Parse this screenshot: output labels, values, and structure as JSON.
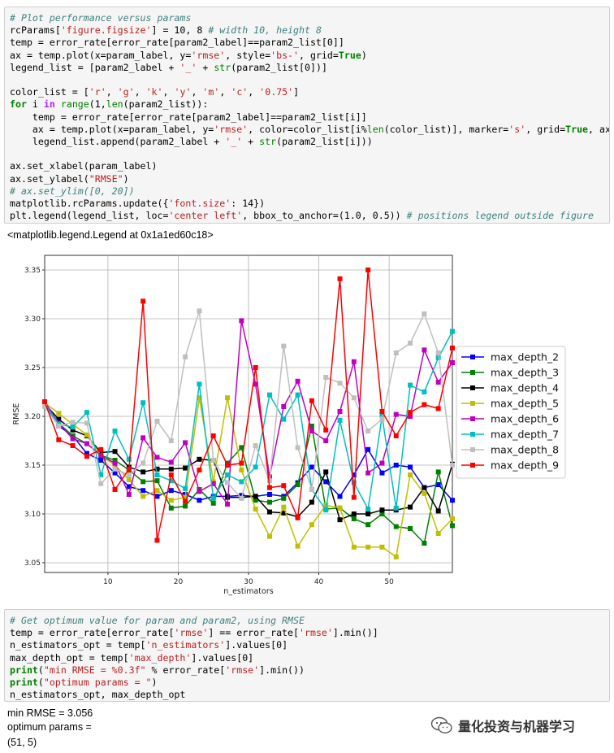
{
  "cell1": {
    "lines": [
      [
        [
          "cm",
          "# Plot performance versus params"
        ]
      ],
      [
        [
          "",
          "rcParams["
        ],
        [
          "st",
          "'figure.figsize'"
        ],
        [
          "",
          "] = 10, 8 "
        ],
        [
          "cm",
          "# width 10, height 8"
        ]
      ],
      [
        [
          "",
          "temp = error_rate[error_rate[param2_label]==param2_list[0]]"
        ]
      ],
      [
        [
          "",
          "ax = temp.plot(x=param_label, y="
        ],
        [
          "st",
          "'rmse'"
        ],
        [
          "",
          ", style="
        ],
        [
          "st",
          "'bs-'"
        ],
        [
          "",
          ", grid="
        ],
        [
          "kw",
          "True"
        ],
        [
          "",
          ")"
        ]
      ],
      [
        [
          "",
          "legend_list = [param2_label + "
        ],
        [
          "st",
          "'_'"
        ],
        [
          "",
          " + "
        ],
        [
          "bi",
          "str"
        ],
        [
          "",
          "(param2_list[0])]"
        ]
      ],
      [
        [
          "",
          ""
        ]
      ],
      [
        [
          "",
          "color_list = ["
        ],
        [
          "st",
          "'r'"
        ],
        [
          "",
          ", "
        ],
        [
          "st",
          "'g'"
        ],
        [
          "",
          ", "
        ],
        [
          "st",
          "'k'"
        ],
        [
          "",
          ", "
        ],
        [
          "st",
          "'y'"
        ],
        [
          "",
          ", "
        ],
        [
          "st",
          "'m'"
        ],
        [
          "",
          ", "
        ],
        [
          "st",
          "'c'"
        ],
        [
          "",
          ", "
        ],
        [
          "st",
          "'0.75'"
        ],
        [
          "",
          "]"
        ]
      ],
      [
        [
          "kw",
          "for"
        ],
        [
          "",
          " i "
        ],
        [
          "op",
          "in"
        ],
        [
          "",
          " "
        ],
        [
          "bi",
          "range"
        ],
        [
          "",
          "(1,"
        ],
        [
          "bi",
          "len"
        ],
        [
          "",
          "(param2_list)):"
        ]
      ],
      [
        [
          "",
          "    temp = error_rate[error_rate[param2_label]==param2_list[i]]"
        ]
      ],
      [
        [
          "",
          "    ax = temp.plot(x=param_label, y="
        ],
        [
          "st",
          "'rmse'"
        ],
        [
          "",
          ", color=color_list[i%"
        ],
        [
          "bi",
          "len"
        ],
        [
          "",
          "(color_list)], marker="
        ],
        [
          "st",
          "'s'"
        ],
        [
          "",
          ", grid="
        ],
        [
          "kw",
          "True"
        ],
        [
          "",
          ", ax=ax)"
        ]
      ],
      [
        [
          "",
          "    legend_list.append(param2_label + "
        ],
        [
          "st",
          "'_'"
        ],
        [
          "",
          " + "
        ],
        [
          "bi",
          "str"
        ],
        [
          "",
          "(param2_list[i]))"
        ]
      ],
      [
        [
          "",
          ""
        ]
      ],
      [
        [
          "",
          "ax.set_xlabel(param_label)"
        ]
      ],
      [
        [
          "",
          "ax.set_ylabel("
        ],
        [
          "st",
          "\"RMSE\""
        ],
        [
          "",
          ")"
        ]
      ],
      [
        [
          "cm",
          "# ax.set_ylim([0, 20])"
        ]
      ],
      [
        [
          "",
          "matplotlib.rcParams.update({"
        ],
        [
          "st",
          "'font.size'"
        ],
        [
          "",
          ": 14})"
        ]
      ],
      [
        [
          "",
          "plt.legend(legend_list, loc="
        ],
        [
          "st",
          "'center left'"
        ],
        [
          "",
          ", bbox_to_anchor=(1.0, 0.5)) "
        ],
        [
          "cm",
          "# positions legend outside figure"
        ]
      ]
    ]
  },
  "output1": "<matplotlib.legend.Legend at 0x1a1ed60c18>",
  "cell2": {
    "lines": [
      [
        [
          "cm",
          "# Get optimum value for param and param2, using RMSE"
        ]
      ],
      [
        [
          "",
          "temp = error_rate[error_rate["
        ],
        [
          "st",
          "'rmse'"
        ],
        [
          "",
          "] == error_rate["
        ],
        [
          "st",
          "'rmse'"
        ],
        [
          "",
          "].min()]"
        ]
      ],
      [
        [
          "",
          "n_estimators_opt = temp["
        ],
        [
          "st",
          "'n_estimators'"
        ],
        [
          "",
          "].values[0]"
        ]
      ],
      [
        [
          "",
          "max_depth_opt = temp["
        ],
        [
          "st",
          "'max_depth'"
        ],
        [
          "",
          "].values[0]"
        ]
      ],
      [
        [
          "kw",
          "print"
        ],
        [
          "",
          "("
        ],
        [
          "st",
          "\"min RMSE = %0.3f\""
        ],
        [
          "",
          " % error_rate["
        ],
        [
          "st",
          "'rmse'"
        ],
        [
          "",
          "].min())"
        ]
      ],
      [
        [
          "kw",
          "print"
        ],
        [
          "",
          "("
        ],
        [
          "st",
          "\"optimum params = \""
        ],
        [
          "",
          ")"
        ]
      ],
      [
        [
          "",
          "n_estimators_opt, max_depth_opt"
        ]
      ]
    ]
  },
  "output2": {
    "line1": "min RMSE = 3.056",
    "line2": "optimum params =",
    "line3": "(51, 5)"
  },
  "watermark": {
    "text": "量化投资与机器学习",
    "icon": "wechat-icon"
  },
  "chart_data": {
    "type": "line",
    "xlabel": "n_estimators",
    "ylabel": "RMSE",
    "xlim": [
      1,
      59
    ],
    "ylim": [
      3.04,
      3.365
    ],
    "xticks": [
      10,
      20,
      30,
      40,
      50
    ],
    "yticks": [
      3.05,
      3.1,
      3.15,
      3.2,
      3.25,
      3.3,
      3.35
    ],
    "ytick_labels": [
      "3.05",
      "3.10",
      "3.15",
      "3.20",
      "3.25",
      "3.30",
      "3.35"
    ],
    "grid": true,
    "legend_position": "center left, outside right",
    "x": [
      1,
      3,
      5,
      7,
      9,
      11,
      13,
      15,
      17,
      19,
      21,
      23,
      25,
      27,
      29,
      31,
      33,
      35,
      37,
      39,
      41,
      43,
      45,
      47,
      49,
      51,
      53,
      55,
      57,
      59
    ],
    "series": [
      {
        "name": "max_depth_2",
        "color": "#0000ff",
        "values": [
          3.212,
          3.19,
          3.18,
          3.162,
          3.155,
          3.142,
          3.128,
          3.124,
          3.118,
          3.124,
          3.12,
          3.114,
          3.118,
          3.118,
          3.119,
          3.118,
          3.12,
          3.118,
          3.132,
          3.148,
          3.133,
          3.118,
          3.14,
          3.166,
          3.142,
          3.15,
          3.148,
          3.127,
          3.13,
          3.114
        ]
      },
      {
        "name": "max_depth_3",
        "color": "#008000",
        "values": [
          3.214,
          3.193,
          3.18,
          3.172,
          3.16,
          3.155,
          3.145,
          3.133,
          3.134,
          3.106,
          3.108,
          3.125,
          3.111,
          3.152,
          3.168,
          3.114,
          3.112,
          3.116,
          3.13,
          3.19,
          3.105,
          3.106,
          3.095,
          3.089,
          3.1,
          3.087,
          3.085,
          3.07,
          3.143,
          3.088
        ]
      },
      {
        "name": "max_depth_4",
        "color": "#000000",
        "values": [
          3.213,
          3.197,
          3.186,
          3.18,
          3.163,
          3.164,
          3.148,
          3.143,
          3.146,
          3.146,
          3.147,
          3.156,
          3.155,
          3.117,
          3.117,
          3.118,
          3.102,
          3.101,
          3.097,
          3.112,
          3.143,
          3.094,
          3.1,
          3.1,
          3.104,
          3.104,
          3.107,
          3.127,
          3.103,
          3.151
        ]
      },
      {
        "name": "max_depth_5",
        "color": "#bfbf00",
        "values": [
          3.214,
          3.203,
          3.192,
          3.181,
          3.16,
          3.15,
          3.135,
          3.118,
          3.124,
          3.114,
          3.117,
          3.219,
          3.133,
          3.219,
          3.145,
          3.105,
          3.077,
          3.107,
          3.067,
          3.089,
          3.109,
          3.106,
          3.066,
          3.066,
          3.066,
          3.056,
          3.14,
          3.121,
          3.08,
          3.095
        ]
      },
      {
        "name": "max_depth_6",
        "color": "#bf00bf",
        "values": [
          3.215,
          3.193,
          3.177,
          3.172,
          3.16,
          3.152,
          3.12,
          3.178,
          3.158,
          3.153,
          3.173,
          3.123,
          3.131,
          3.11,
          3.298,
          3.233,
          3.138,
          3.21,
          3.236,
          3.185,
          3.175,
          3.205,
          3.256,
          3.142,
          3.152,
          3.202,
          3.2,
          3.268,
          3.235,
          3.255
        ]
      },
      {
        "name": "max_depth_7",
        "color": "#00bfbf",
        "values": [
          3.213,
          3.192,
          3.189,
          3.204,
          3.14,
          3.185,
          3.156,
          3.214,
          3.14,
          3.134,
          3.126,
          3.233,
          3.116,
          3.14,
          3.133,
          3.148,
          3.222,
          3.197,
          3.222,
          3.125,
          3.104,
          3.196,
          3.132,
          3.105,
          3.2,
          3.106,
          3.232,
          3.225,
          3.26,
          3.287
        ]
      },
      {
        "name": "max_depth_8",
        "color": "#bfbfbf",
        "values": [
          3.21,
          3.19,
          3.194,
          3.193,
          3.131,
          3.146,
          3.14,
          3.152,
          3.195,
          3.175,
          3.261,
          3.308,
          3.155,
          3.132,
          3.116,
          3.17,
          3.134,
          3.272,
          3.168,
          3.125,
          3.24,
          3.234,
          3.219,
          3.185,
          3.197,
          3.265,
          3.275,
          3.305,
          3.265,
          3.15
        ]
      },
      {
        "name": "max_depth_9",
        "color": "#ff0000",
        "values": [
          3.215,
          3.176,
          3.17,
          3.159,
          3.166,
          3.125,
          3.146,
          3.318,
          3.073,
          3.14,
          3.113,
          3.145,
          3.18,
          3.15,
          3.152,
          3.25,
          3.127,
          3.129,
          3.096,
          3.216,
          3.186,
          3.341,
          3.117,
          3.35,
          3.205,
          3.18,
          3.204,
          3.212,
          3.208,
          3.27
        ]
      }
    ]
  }
}
